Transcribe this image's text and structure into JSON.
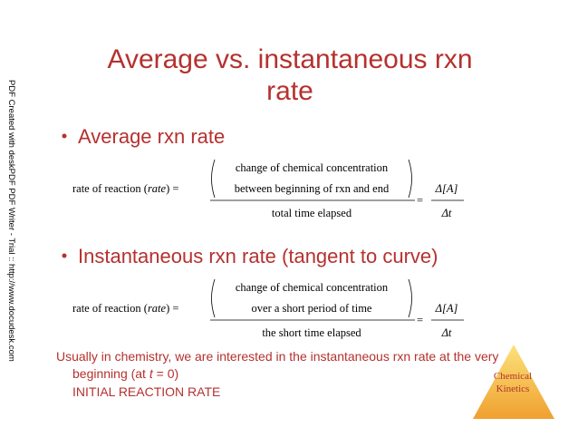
{
  "side_note": "PDF Created with deskPDF PDF Writer - Trial :: http://www.docudesk.com",
  "title": {
    "line1": "Average vs. instantaneous rxn",
    "line2": "rate"
  },
  "bullets": [
    {
      "text": "Average rxn rate",
      "equation": {
        "lhs_start": "rate of reaction (",
        "lhs_italic": "rate",
        "lhs_end": ") =",
        "numerator": [
          "change of chemical concentration",
          "between beginning of rxn and end"
        ],
        "denominator": "total time elapsed",
        "equals": "=",
        "delta_num": "Δ[A]",
        "delta_den": "Δt"
      }
    },
    {
      "text": "Instantaneous rxn rate (tangent to curve)",
      "equation": {
        "lhs_start": "rate of reaction (",
        "lhs_italic": "rate",
        "lhs_end": ") =",
        "numerator": [
          "change of chemical concentration",
          "over a short period of time"
        ],
        "denominator": "the short time elapsed",
        "equals": "=",
        "delta_num": "Δ[A]",
        "delta_den": "Δt"
      }
    }
  ],
  "footer": {
    "line1": "Usually in chemistry, we are interested in the instantaneous rxn rate at the very",
    "line2_start": "beginning (at ",
    "line2_italic": "t",
    "line2_end": " = 0)",
    "line3": "INITIAL REACTION RATE"
  },
  "logo": [
    "Chemical",
    "Kinetics"
  ]
}
